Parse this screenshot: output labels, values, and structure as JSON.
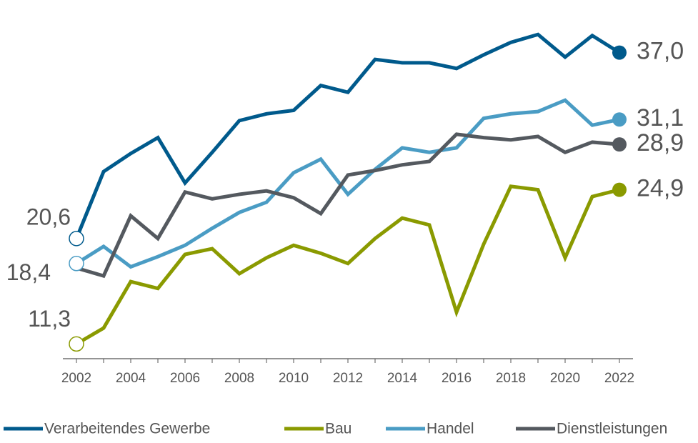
{
  "chart_data": {
    "type": "line",
    "x": [
      2002,
      2003,
      2004,
      2005,
      2006,
      2007,
      2008,
      2009,
      2010,
      2011,
      2012,
      2013,
      2014,
      2015,
      2016,
      2017,
      2018,
      2019,
      2020,
      2021,
      2022
    ],
    "xlim": [
      2001.5,
      2022.5
    ],
    "xticks": [
      2002,
      2004,
      2006,
      2008,
      2010,
      2012,
      2014,
      2016,
      2018,
      2020,
      2022
    ],
    "ylim": [
      10,
      40
    ],
    "legend": "bottom",
    "series": [
      {
        "name": "Verarbeitendes Gewerbe",
        "color": "#005a8c",
        "values": [
          20.6,
          26.5,
          28.1,
          29.5,
          25.5,
          28.2,
          31.0,
          31.6,
          31.9,
          34.1,
          33.5,
          36.4,
          36.1,
          36.1,
          35.6,
          36.8,
          37.9,
          38.6,
          36.6,
          38.5,
          37.0
        ],
        "value_labels": [
          "20,6",
          null,
          null,
          null,
          null,
          null,
          null,
          null,
          null,
          null,
          null,
          null,
          null,
          null,
          null,
          null,
          null,
          null,
          null,
          null,
          "37,0"
        ]
      },
      {
        "name": "Bau",
        "color": "#8a9a00",
        "values": [
          11.3,
          12.7,
          16.8,
          16.2,
          19.2,
          19.7,
          17.5,
          18.9,
          20.0,
          19.3,
          18.4,
          20.6,
          22.4,
          21.8,
          14.1,
          20.1,
          25.2,
          24.9,
          18.9,
          24.3,
          24.9
        ],
        "value_labels": [
          "11,3",
          null,
          null,
          null,
          null,
          null,
          null,
          null,
          null,
          null,
          null,
          null,
          null,
          null,
          null,
          null,
          null,
          null,
          null,
          null,
          "24,9"
        ]
      },
      {
        "name": "Handel",
        "color": "#4a9cc4",
        "values": [
          18.4,
          19.9,
          18.1,
          19.0,
          20.0,
          21.5,
          22.9,
          23.8,
          26.4,
          27.6,
          24.5,
          26.7,
          28.6,
          28.2,
          28.6,
          31.2,
          31.6,
          31.8,
          32.8,
          30.6,
          31.1
        ],
        "value_labels": [
          "18,4",
          null,
          null,
          null,
          null,
          null,
          null,
          null,
          null,
          null,
          null,
          null,
          null,
          null,
          null,
          null,
          null,
          null,
          null,
          null,
          "31,1"
        ]
      },
      {
        "name": "Dienstleistungen",
        "color": "#54595f",
        "values": [
          18.0,
          17.3,
          22.6,
          20.6,
          24.7,
          24.1,
          24.5,
          24.8,
          24.2,
          22.8,
          26.2,
          26.6,
          27.1,
          27.4,
          29.8,
          29.5,
          29.3,
          29.6,
          28.2,
          29.1,
          28.9
        ],
        "value_labels": [
          null,
          null,
          null,
          null,
          null,
          null,
          null,
          null,
          null,
          null,
          null,
          null,
          null,
          null,
          null,
          null,
          null,
          null,
          null,
          null,
          "28,9"
        ]
      }
    ]
  }
}
